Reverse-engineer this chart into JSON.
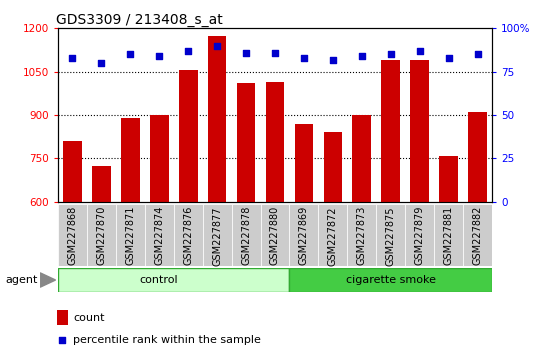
{
  "title": "GDS3309 / 213408_s_at",
  "samples": [
    "GSM227868",
    "GSM227870",
    "GSM227871",
    "GSM227874",
    "GSM227876",
    "GSM227877",
    "GSM227878",
    "GSM227880",
    "GSM227869",
    "GSM227872",
    "GSM227873",
    "GSM227875",
    "GSM227879",
    "GSM227881",
    "GSM227882"
  ],
  "counts": [
    810,
    725,
    890,
    900,
    1055,
    1175,
    1010,
    1015,
    870,
    840,
    900,
    1090,
    1090,
    760,
    910
  ],
  "percentiles": [
    83,
    80,
    85,
    84,
    87,
    90,
    86,
    86,
    83,
    82,
    84,
    85,
    87,
    83,
    85
  ],
  "n_control": 8,
  "ylim_left": [
    600,
    1200
  ],
  "ylim_right": [
    0,
    100
  ],
  "yticks_left": [
    600,
    750,
    900,
    1050,
    1200
  ],
  "yticks_right": [
    0,
    25,
    50,
    75,
    100
  ],
  "bar_color": "#cc0000",
  "dot_color": "#0000cc",
  "control_color": "#ccffcc",
  "smoke_color": "#44cc44",
  "tick_label_bg": "#cccccc",
  "plot_bg": "#ffffff",
  "agent_label": "agent",
  "control_label": "control",
  "smoke_label": "cigarette smoke",
  "legend_count": "count",
  "legend_pct": "percentile rank within the sample",
  "title_fontsize": 10,
  "tick_fontsize": 7.5,
  "label_fontsize": 7,
  "group_fontsize": 8,
  "legend_fontsize": 8,
  "bar_width": 0.65
}
